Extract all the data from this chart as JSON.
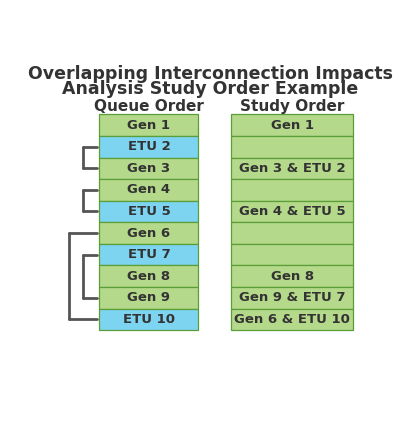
{
  "title_line1": "Overlapping Interconnection Impacts",
  "title_line2": "Analysis Study Order Example",
  "col1_header": "Queue Order",
  "col2_header": "Study Order",
  "queue_items": [
    {
      "label": "Gen 1",
      "color": "#b5d98a"
    },
    {
      "label": "ETU 2",
      "color": "#7dd4f0"
    },
    {
      "label": "Gen 3",
      "color": "#b5d98a"
    },
    {
      "label": "Gen 4",
      "color": "#b5d98a"
    },
    {
      "label": "ETU 5",
      "color": "#7dd4f0"
    },
    {
      "label": "Gen 6",
      "color": "#b5d98a"
    },
    {
      "label": "ETU 7",
      "color": "#7dd4f0"
    },
    {
      "label": "Gen 8",
      "color": "#b5d98a"
    },
    {
      "label": "Gen 9",
      "color": "#b5d98a"
    },
    {
      "label": "ETU 10",
      "color": "#7dd4f0"
    }
  ],
  "study_items": [
    {
      "label": "Gen 1",
      "color": "#b5d98a"
    },
    {
      "label": "",
      "color": "#b5d98a"
    },
    {
      "label": "Gen 3 & ETU 2",
      "color": "#b5d98a"
    },
    {
      "label": "",
      "color": "#b5d98a"
    },
    {
      "label": "Gen 4 & ETU 5",
      "color": "#b5d98a"
    },
    {
      "label": "",
      "color": "#b5d98a"
    },
    {
      "label": "",
      "color": "#b5d98a"
    },
    {
      "label": "Gen 8",
      "color": "#b5d98a"
    },
    {
      "label": "Gen 9 & ETU 7",
      "color": "#b5d98a"
    },
    {
      "label": "Gen 6 & ETU 10",
      "color": "#b5d98a"
    }
  ],
  "bracket_color": "#555555",
  "border_color": "#5a9e3a",
  "text_color": "#333333",
  "title_color": "#333333"
}
